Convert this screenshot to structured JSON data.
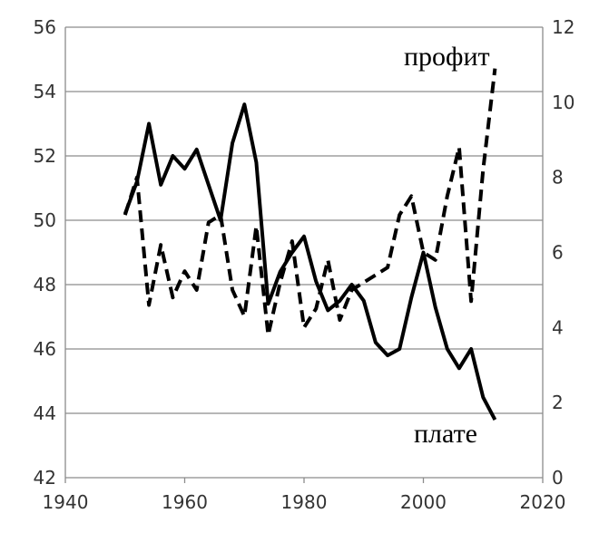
{
  "chart_data": {
    "type": "line",
    "title": "",
    "xlabel": "",
    "ylabel": "",
    "y2label": "",
    "xlim": [
      1940,
      2020
    ],
    "ylim": [
      42,
      56
    ],
    "y2lim": [
      0,
      12
    ],
    "x_ticks": [
      1940,
      1960,
      1980,
      2000,
      2020
    ],
    "y_ticks": [
      42,
      44,
      46,
      48,
      50,
      52,
      54,
      56
    ],
    "y2_ticks": [
      0,
      2,
      4,
      6,
      8,
      10,
      12
    ],
    "grid": "horizontal",
    "series": [
      {
        "name": "плате",
        "axis": "left",
        "style": "solid",
        "color": "#000000",
        "x": [
          1950,
          1952,
          1954,
          1956,
          1958,
          1960,
          1962,
          1964,
          1966,
          1968,
          1970,
          1972,
          1974,
          1976,
          1978,
          1980,
          1982,
          1984,
          1986,
          1988,
          1990,
          1992,
          1994,
          1996,
          1998,
          2000,
          2002,
          2004,
          2006,
          2008,
          2010,
          2012
        ],
        "values": [
          50.2,
          51.2,
          53.0,
          51.1,
          52.0,
          51.6,
          52.2,
          51.1,
          50.0,
          52.4,
          53.6,
          51.8,
          47.4,
          48.4,
          49.0,
          49.5,
          48.1,
          47.2,
          47.5,
          48.0,
          47.5,
          46.2,
          45.8,
          46.0,
          47.6,
          49.0,
          47.3,
          46.0,
          45.4,
          46.0,
          44.5,
          43.8
        ]
      },
      {
        "name": "профит",
        "axis": "right",
        "style": "dashed",
        "color": "#000000",
        "x": [
          1950,
          1952,
          1954,
          1956,
          1958,
          1960,
          1962,
          1964,
          1966,
          1968,
          1970,
          1972,
          1974,
          1976,
          1978,
          1980,
          1982,
          1984,
          1986,
          1988,
          1990,
          1992,
          1994,
          1996,
          1998,
          2000,
          2002,
          2004,
          2006,
          2008,
          2010,
          2012
        ],
        "values": [
          7.0,
          8.0,
          4.6,
          6.2,
          4.8,
          5.5,
          5.0,
          6.8,
          7.0,
          5.0,
          4.3,
          6.7,
          3.8,
          5.2,
          6.3,
          4.0,
          4.5,
          5.8,
          4.2,
          5.0,
          5.2,
          5.4,
          5.6,
          7.0,
          7.5,
          6.0,
          5.8,
          7.5,
          8.8,
          4.7,
          8.2,
          10.9
        ]
      }
    ]
  }
}
